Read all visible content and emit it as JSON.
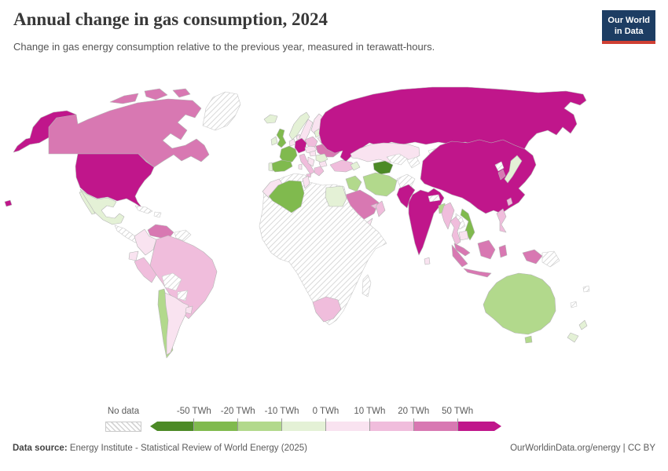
{
  "header": {
    "title": "Annual change in gas consumption, 2024",
    "subtitle": "Change in gas energy consumption relative to the previous year, measured in terawatt-hours.",
    "logo": {
      "line1": "Our World",
      "line2": "in Data",
      "bg": "#1d3d63",
      "accent": "#cf3f33"
    }
  },
  "legend": {
    "no_data_label": "No data",
    "ticks": [
      "-50 TWh",
      "-20 TWh",
      "-10 TWh",
      "0 TWh",
      "10 TWh",
      "20 TWh",
      "50 TWh"
    ],
    "segment_colors": [
      "#4c8a26",
      "#80ba4e",
      "#b2d98c",
      "#e4f1d6",
      "#f9e3f0",
      "#f0bddc",
      "#d878b2",
      "#c0168b"
    ]
  },
  "footer": {
    "source_label": "Data source:",
    "source_text": " Energy Institute - Statistical Review of World Energy (2025)",
    "right_text": "OurWorldinData.org/energy | CC BY"
  },
  "chart_data": {
    "type": "choropleth_map",
    "title": "Annual change in gas consumption, 2024",
    "unit": "TWh",
    "year": 2024,
    "legend_bins": [
      {
        "key": "g4",
        "label": "less than -50 TWh",
        "color": "#4c8a26"
      },
      {
        "key": "g3",
        "label": "-50 to -20 TWh",
        "color": "#80ba4e"
      },
      {
        "key": "g2",
        "label": "-20 to -10 TWh",
        "color": "#b2d98c"
      },
      {
        "key": "g1",
        "label": "-10 to 0 TWh",
        "color": "#e4f1d6"
      },
      {
        "key": "p1",
        "label": "0 to 10 TWh",
        "color": "#f9e3f0"
      },
      {
        "key": "p2",
        "label": "10 to 20 TWh",
        "color": "#f0bddc"
      },
      {
        "key": "p3",
        "label": "20 to 50 TWh",
        "color": "#d878b2"
      },
      {
        "key": "p4",
        "label": "more than 50 TWh",
        "color": "#c0168b"
      },
      {
        "key": "nodata",
        "label": "No data",
        "color": "hatched"
      }
    ],
    "regions": {
      "united-states": "p4",
      "canada": "p3",
      "mexico": "g1",
      "greenland": "nodata",
      "central-america": "nodata",
      "cuba": "nodata",
      "hispaniola": "nodata",
      "venezuela": "p3",
      "guyanas": "nodata",
      "colombia": "p1",
      "ecuador": "p1",
      "peru": "p2",
      "brazil": "p2",
      "bolivia": "nodata",
      "paraguay": "nodata",
      "chile": "g2",
      "argentina": "p1",
      "uruguay": "p1",
      "iceland": "g1",
      "norway": "g1",
      "sweden": "p1",
      "finland": "p1",
      "denmark": "p1",
      "united-kingdom": "g3",
      "ireland": "g1",
      "benelux": "p1",
      "germany": "p4",
      "france": "g3",
      "spain": "g3",
      "portugal": "g1",
      "italy": "p2",
      "sicily": "p2",
      "sardinia": "p1",
      "austria-czechia": "p1",
      "poland": "p2",
      "baltics": "g1",
      "belarus": "p1",
      "ukraine": "p3",
      "romania": "g1",
      "hungary": "p1",
      "balkans": "p1",
      "bulgaria": "p1",
      "greece": "p2",
      "russia": "p4",
      "kazakhstan": "p1",
      "uzbekistan": "nodata",
      "turkmenistan": "g4",
      "kyrgyzstan-tajikistan": "nodata",
      "afghanistan": "nodata",
      "mongolia": "nodata",
      "turkey": "p2",
      "azerbaijan": "g1",
      "iraq": "g2",
      "iran": "g2",
      "saudi-arabia": "p3",
      "yemen": "p1",
      "oman": "p2",
      "uae": "p2",
      "china": "p4",
      "india": "p4",
      "pakistan": "p4",
      "nepal": "nodata",
      "bangladesh": "g2",
      "sri-lanka": "p1",
      "myanmar": "p2",
      "thailand": "p2",
      "laos": "nodata",
      "vietnam": "g3",
      "cambodia": "p1",
      "malaysia": "p3",
      "indonesia": "p3",
      "papua-new-guinea": "nodata",
      "philippines": "p2",
      "japan": "g1",
      "south-korea": "p3",
      "north-korea": "nodata",
      "taiwan": "p2",
      "morocco": "p1",
      "algeria": "g3",
      "tunisia": "p1",
      "egypt": "g1",
      "africa-other": "nodata",
      "south-africa": "p2",
      "madagascar": "nodata",
      "australia": "g2",
      "new-zealand": "g1",
      "pacific-islands": "nodata"
    }
  }
}
